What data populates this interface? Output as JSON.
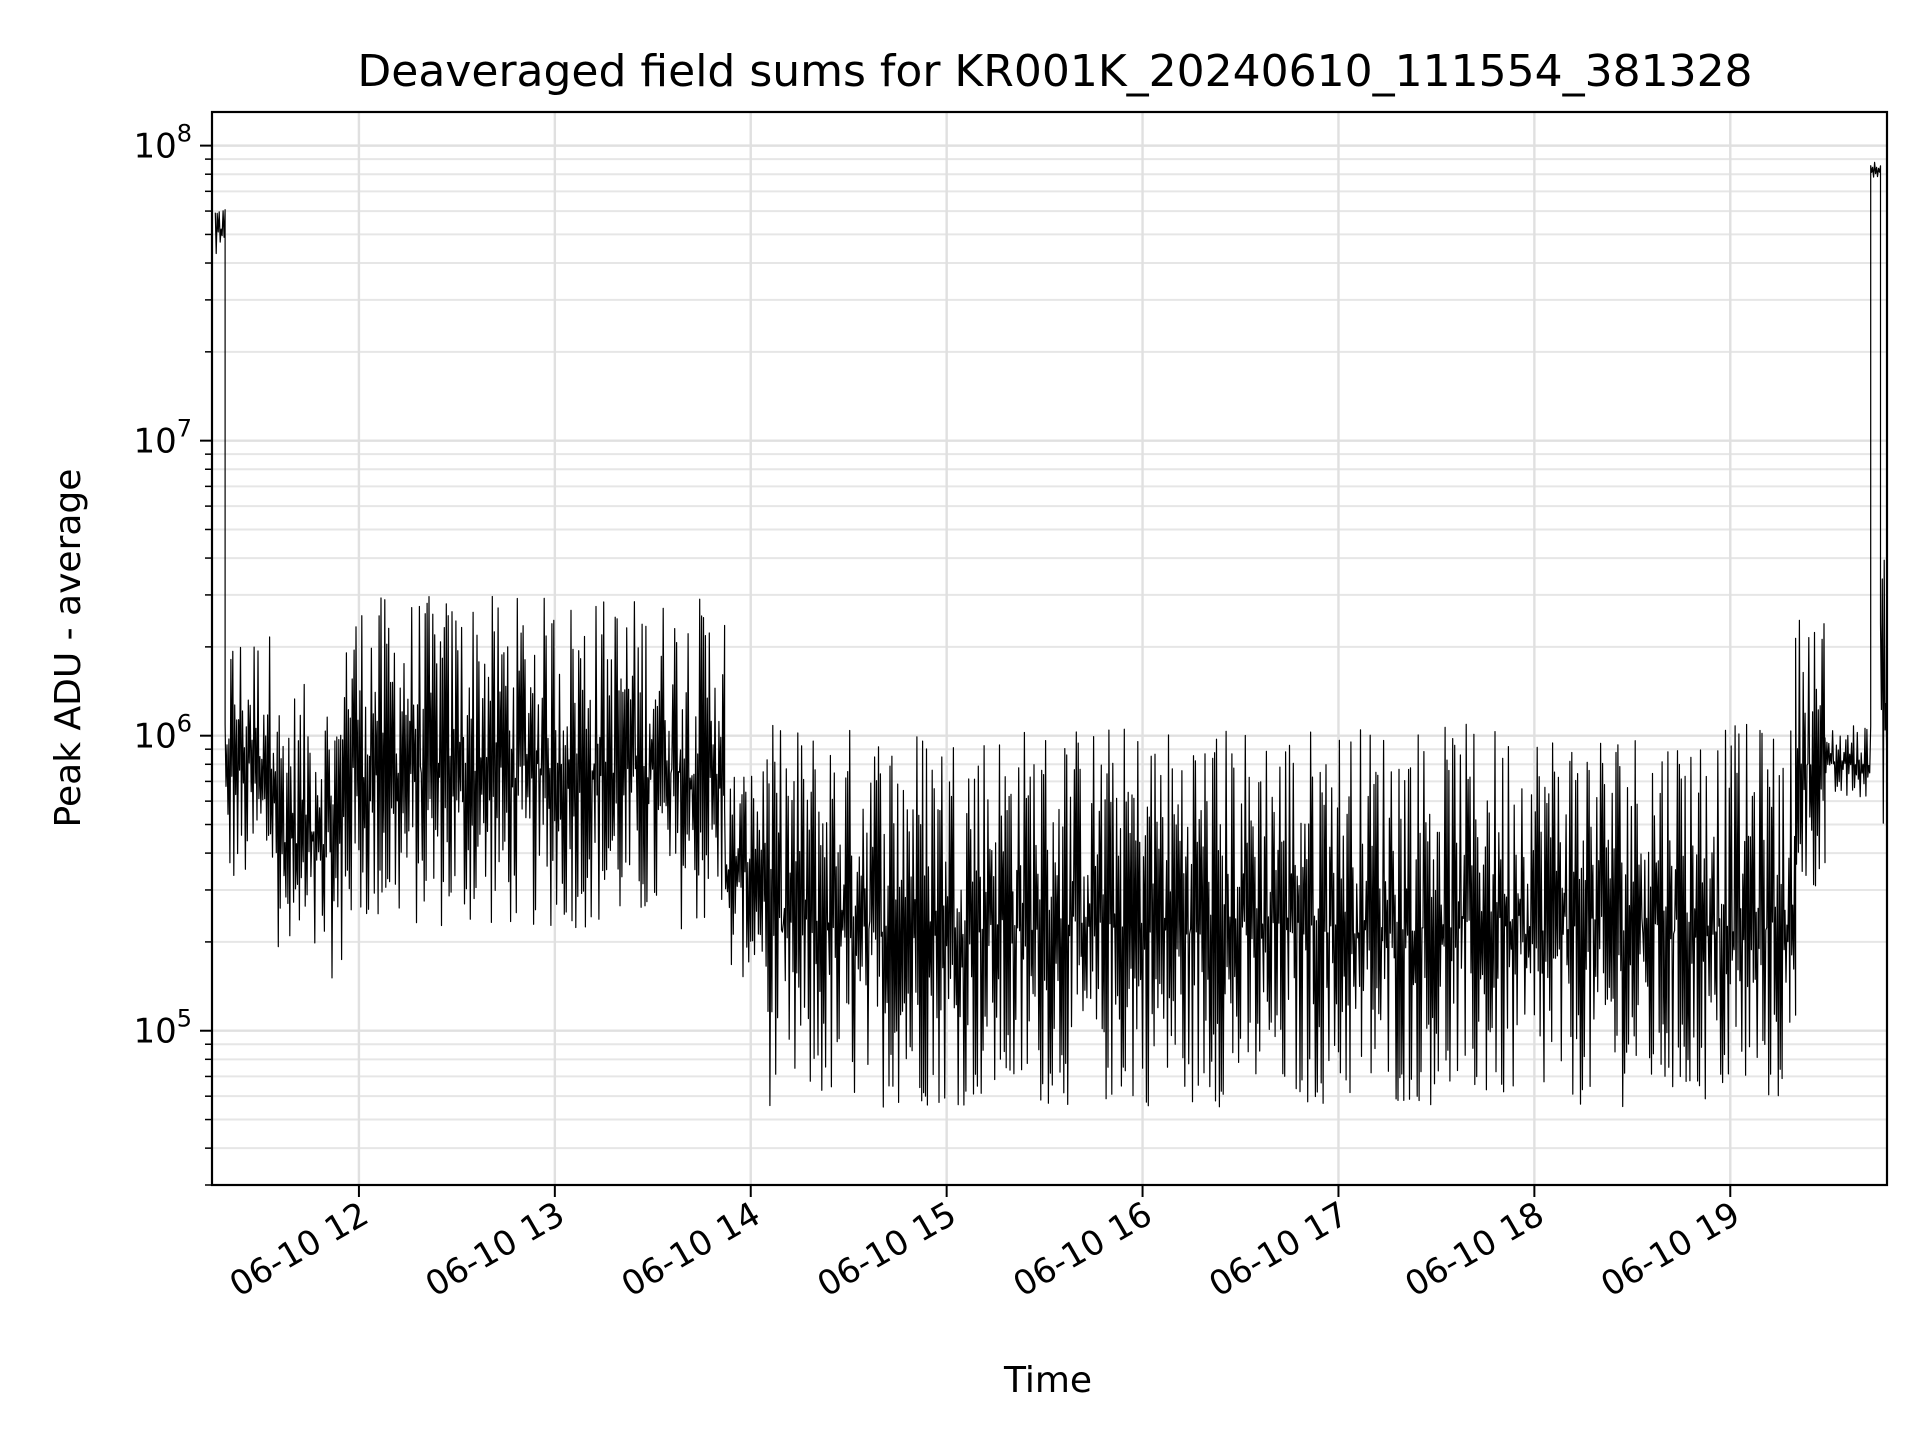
{
  "chart_data": {
    "type": "line",
    "title": "Deaveraged field sums for KR001K_20240610_111554_381328",
    "xlabel": "Time",
    "ylabel": "Peak ADU - average",
    "yscale": "log",
    "ylim": [
      30000,
      130000000
    ],
    "xlim": [
      "2024-06-10 11:15",
      "2024-06-10 19:48"
    ],
    "grid": true,
    "x_ticks": [
      {
        "t": "2024-06-10 12:00",
        "label": "06-10 12"
      },
      {
        "t": "2024-06-10 13:00",
        "label": "06-10 13"
      },
      {
        "t": "2024-06-10 14:00",
        "label": "06-10 14"
      },
      {
        "t": "2024-06-10 15:00",
        "label": "06-10 15"
      },
      {
        "t": "2024-06-10 16:00",
        "label": "06-10 16"
      },
      {
        "t": "2024-06-10 17:00",
        "label": "06-10 17"
      },
      {
        "t": "2024-06-10 18:00",
        "label": "06-10 18"
      },
      {
        "t": "2024-06-10 19:00",
        "label": "06-10 19"
      }
    ],
    "y_ticks": [
      {
        "value": 100000,
        "base": "10",
        "exp": "5"
      },
      {
        "value": 1000000,
        "base": "10",
        "exp": "6"
      },
      {
        "value": 10000000,
        "base": "10",
        "exp": "7"
      },
      {
        "value": 100000000,
        "base": "10",
        "exp": "8"
      }
    ],
    "series": [
      {
        "color": "#000000",
        "segments": [
          {
            "start": "2024-06-10 11:16",
            "end": "2024-06-10 11:19",
            "low": 40000000,
            "high": 65000000
          },
          {
            "start": "2024-06-10 11:19",
            "end": "2024-06-10 11:35",
            "low": 300000,
            "high": 2300000
          },
          {
            "start": "2024-06-10 11:35",
            "end": "2024-06-10 11:55",
            "low": 150000,
            "high": 1500000
          },
          {
            "start": "2024-06-10 11:55",
            "end": "2024-06-10 13:52",
            "low": 220000,
            "high": 3000000
          },
          {
            "start": "2024-06-10 13:52",
            "end": "2024-06-10 14:05",
            "low": 150000,
            "high": 800000
          },
          {
            "start": "2024-06-10 14:05",
            "end": "2024-06-10 19:20",
            "low": 55000,
            "high": 1100000
          },
          {
            "start": "2024-06-10 19:20",
            "end": "2024-06-10 19:29",
            "low": 300000,
            "high": 2600000
          },
          {
            "start": "2024-06-10 19:29",
            "end": "2024-06-10 19:43",
            "low": 600000,
            "high": 1100000
          },
          {
            "start": "2024-06-10 19:43",
            "end": "2024-06-10 19:46",
            "low": 78000000,
            "high": 88000000
          },
          {
            "start": "2024-06-10 19:46",
            "end": "2024-06-10 19:48",
            "low": 480000,
            "high": 4000000
          }
        ]
      }
    ]
  }
}
